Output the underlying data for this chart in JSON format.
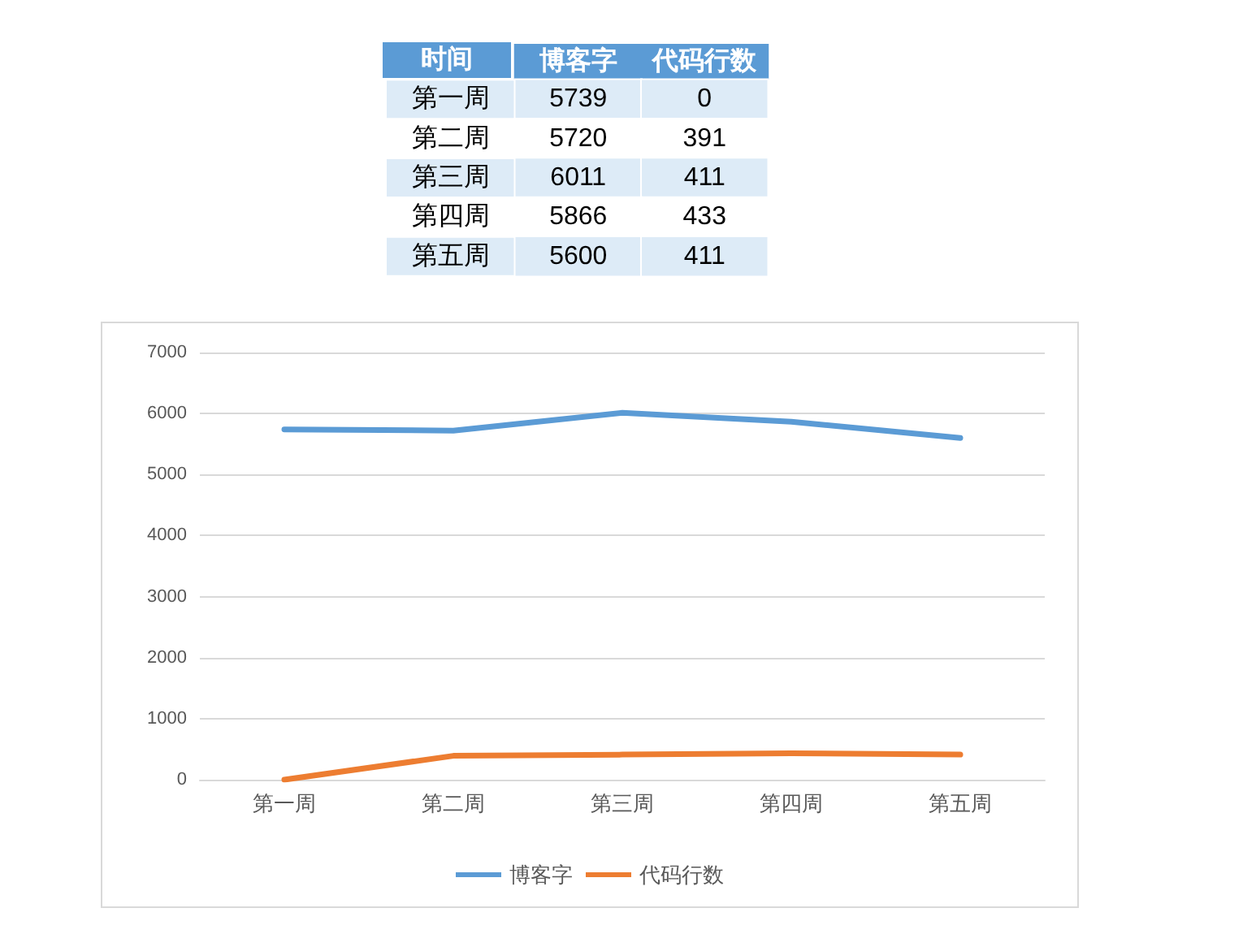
{
  "chart_data": [
    {
      "type": "heatmap",
      "annotations": [
        "时间"
      ],
      "categories": [
        "博客字",
        "代码行数"
      ],
      "y_categories": [
        "第一周",
        "第二周",
        "第三周",
        "第四周",
        "第五周"
      ],
      "cells": [
        [
          5739,
          0
        ],
        [
          5720,
          391
        ],
        [
          6011,
          411
        ],
        [
          5866,
          433
        ],
        [
          5600,
          411
        ]
      ],
      "data_labels": true
    },
    {
      "type": "line",
      "categories": [
        "第一周",
        "第二周",
        "第三周",
        "第四周",
        "第五周"
      ],
      "series": [
        {
          "name": "博客字",
          "color": "#5b9bd5",
          "values": [
            5739,
            5720,
            6011,
            5866,
            5600
          ]
        },
        {
          "name": "代码行数",
          "color": "#ed7d31",
          "values": [
            0,
            391,
            411,
            433,
            411
          ]
        }
      ],
      "ylim": [
        0,
        7000
      ],
      "yticks": [
        0,
        1000,
        2000,
        3000,
        4000,
        5000,
        6000,
        7000
      ],
      "grid": "y",
      "legend": "bottom",
      "marker": "none",
      "line_style": "solid"
    }
  ]
}
